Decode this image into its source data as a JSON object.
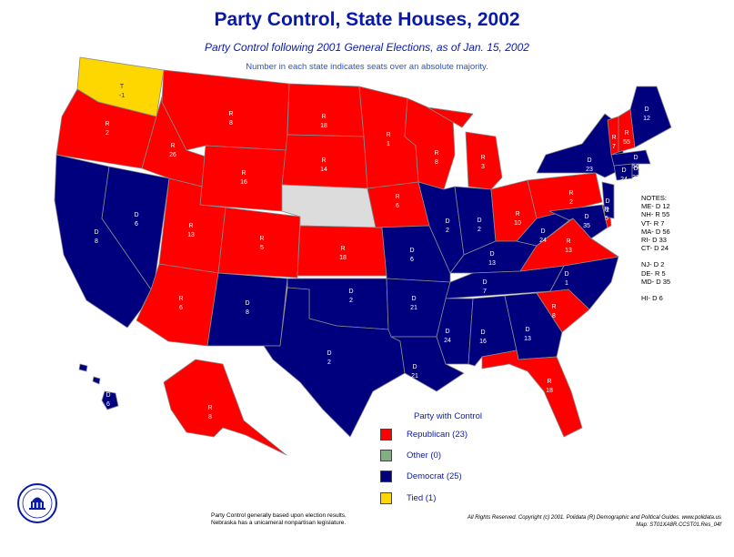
{
  "title": "Party Control, State Houses, 2002",
  "subtitle": "Party Control following 2001 General Elections, as of Jan. 15, 2002",
  "note": "Number in each state indicates seats over an absolute majority.",
  "colors": {
    "republican": "#ff0000",
    "democrat": "#00007f",
    "other": "#80b080",
    "tied": "#ffd700",
    "none": "#dcdcdc",
    "border": "#8a8a8a"
  },
  "states": {
    "WA": {
      "party": "T",
      "label": "T",
      "value": "-1"
    },
    "OR": {
      "party": "R",
      "label": "R",
      "value": "2"
    },
    "CA": {
      "party": "D",
      "label": "D",
      "value": "8"
    },
    "NV": {
      "party": "D",
      "label": "D",
      "value": "6"
    },
    "ID": {
      "party": "R",
      "label": "R",
      "value": "26"
    },
    "MT": {
      "party": "R",
      "label": "R",
      "value": "8"
    },
    "WY": {
      "party": "R",
      "label": "R",
      "value": "16"
    },
    "UT": {
      "party": "R",
      "label": "R",
      "value": "13"
    },
    "AZ": {
      "party": "R",
      "label": "R",
      "value": "6"
    },
    "CO": {
      "party": "R",
      "label": "R",
      "value": "5"
    },
    "NM": {
      "party": "D",
      "label": "D",
      "value": "8"
    },
    "ND": {
      "party": "R",
      "label": "R",
      "value": "18"
    },
    "SD": {
      "party": "R",
      "label": "R",
      "value": "14"
    },
    "NE": {
      "party": "N",
      "label": "",
      "value": ""
    },
    "KS": {
      "party": "R",
      "label": "R",
      "value": "18"
    },
    "OK": {
      "party": "D",
      "label": "D",
      "value": "2"
    },
    "TX": {
      "party": "D",
      "label": "D",
      "value": "2"
    },
    "MN": {
      "party": "R",
      "label": "R",
      "value": "1"
    },
    "IA": {
      "party": "R",
      "label": "R",
      "value": "6"
    },
    "MO": {
      "party": "D",
      "label": "D",
      "value": "6"
    },
    "AR": {
      "party": "D",
      "label": "D",
      "value": "21"
    },
    "LA": {
      "party": "D",
      "label": "D",
      "value": "21"
    },
    "WI": {
      "party": "R",
      "label": "R",
      "value": "8"
    },
    "IL": {
      "party": "D",
      "label": "D",
      "value": "2"
    },
    "MI": {
      "party": "R",
      "label": "R",
      "value": "3"
    },
    "IN": {
      "party": "D",
      "label": "D",
      "value": "2"
    },
    "OH": {
      "party": "R",
      "label": "R",
      "value": "10"
    },
    "KY": {
      "party": "D",
      "label": "D",
      "value": "13"
    },
    "TN": {
      "party": "D",
      "label": "D",
      "value": "7"
    },
    "MS": {
      "party": "D",
      "label": "D",
      "value": "24"
    },
    "AL": {
      "party": "D",
      "label": "D",
      "value": "16"
    },
    "GA": {
      "party": "D",
      "label": "D",
      "value": "13"
    },
    "FL": {
      "party": "R",
      "label": "R",
      "value": "18"
    },
    "SC": {
      "party": "R",
      "label": "R",
      "value": "8"
    },
    "NC": {
      "party": "D",
      "label": "D",
      "value": "1"
    },
    "VA": {
      "party": "R",
      "label": "R",
      "value": "13"
    },
    "WV": {
      "party": "D",
      "label": "D",
      "value": "24"
    },
    "PA": {
      "party": "R",
      "label": "R",
      "value": "2"
    },
    "NY": {
      "party": "D",
      "label": "D",
      "value": "23"
    },
    "MD": {
      "party": "D",
      "label": "D",
      "value": "35"
    },
    "DE": {
      "party": "R",
      "label": "R",
      "value": "5"
    },
    "NJ": {
      "party": "D",
      "label": "D",
      "value": "2"
    },
    "CT": {
      "party": "D",
      "label": "D",
      "value": "24"
    },
    "RI": {
      "party": "D",
      "label": "D",
      "value": "33"
    },
    "MA": {
      "party": "D",
      "label": "D",
      "value": "56"
    },
    "VT": {
      "party": "R",
      "label": "R",
      "value": "7"
    },
    "NH": {
      "party": "R",
      "label": "R",
      "value": "55"
    },
    "ME": {
      "party": "D",
      "label": "D",
      "value": "12"
    },
    "AK": {
      "party": "R",
      "label": "R",
      "value": "8"
    },
    "HI": {
      "party": "D",
      "label": "D",
      "value": "6"
    }
  },
  "notes": {
    "heading": "NOTES:",
    "lines": [
      "ME- D 12",
      "NH- R 55",
      "VT- R 7",
      "MA- D 56",
      "RI- D 33",
      "CT- D 24"
    ],
    "lines2": [
      "NJ- D 2",
      "DE- R 5",
      "MD- D 35"
    ],
    "lines3": [
      "HI- D 6"
    ]
  },
  "legend": {
    "title": "Party with Control",
    "items": [
      {
        "label": "Republican (23)",
        "color": "#ff0000"
      },
      {
        "label": "Other (0)",
        "color": "#80b080"
      },
      {
        "label": "Democrat (25)",
        "color": "#00007f"
      },
      {
        "label": "Tied (1)",
        "color": "#ffd700"
      }
    ]
  },
  "footnote": [
    "Party Control generally based upon election results.",
    "Nebraska has a unicameral nonpartisan legislature."
  ],
  "copyright": [
    "All Rights Reserved. Copyright (c) 2001. Polidata (R) Demographic and Political Guides. www.polidata.us",
    "Map: ST01XA8R.CCST01.Res_04f"
  ]
}
